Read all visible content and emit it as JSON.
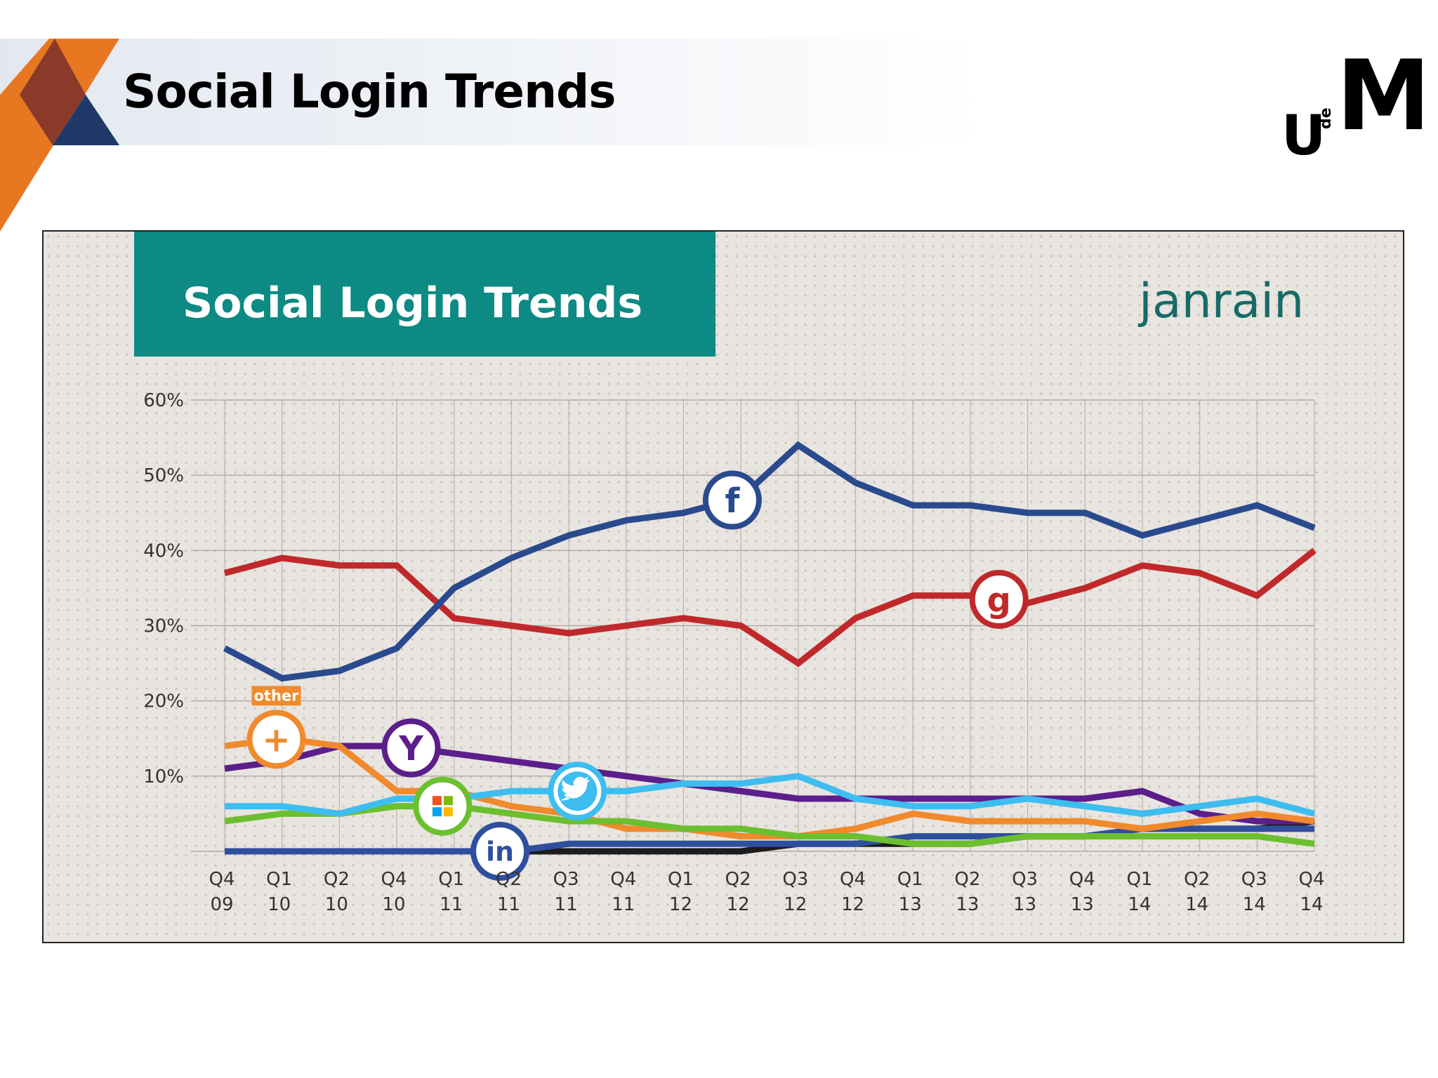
{
  "slide": {
    "title": "Social Login Trends",
    "logo": {
      "icon": "university-logo-icon",
      "letters": [
        "U",
        "de",
        "M"
      ]
    }
  },
  "colors": {
    "header_orange": "#e87722",
    "header_brown": "#8b3a2a",
    "header_navy": "#1f3a68",
    "panel_teal": "#0d8a84",
    "janrain_teal": "#176b66"
  },
  "chart_data": {
    "type": "line",
    "title": "Social Login Trends",
    "brand": "janrain",
    "x": [
      "Q4 09",
      "Q1 10",
      "Q2 10",
      "Q4 10",
      "Q1 11",
      "Q2 11",
      "Q3 11",
      "Q4 11",
      "Q1 12",
      "Q2 12",
      "Q3 12",
      "Q4 12",
      "Q1 13",
      "Q2 13",
      "Q3 13",
      "Q4 13",
      "Q1 14",
      "Q2 14",
      "Q3 14",
      "Q4 14"
    ],
    "y_ticks": [
      "60%",
      "50%",
      "40%",
      "30%",
      "20%",
      "10%"
    ],
    "ylim": [
      0,
      60
    ],
    "grid": true,
    "series": [
      {
        "color": "#2a4a8e",
        "icon": "facebook-icon",
        "icon_text": "f",
        "icon_at": 8.85,
        "values": [
          27,
          23,
          24,
          27,
          35,
          39,
          42,
          44,
          45,
          47,
          54,
          49,
          46,
          46,
          45,
          45,
          42,
          44,
          46,
          43
        ]
      },
      {
        "color": "#c0292b",
        "icon": "google-icon",
        "icon_text": "g",
        "icon_at": 13.5,
        "values": [
          37,
          39,
          38,
          38,
          31,
          30,
          29,
          30,
          31,
          30,
          25,
          31,
          34,
          34,
          33,
          35,
          38,
          37,
          34,
          40
        ]
      },
      {
        "color": "#3dbdf0",
        "icon": "twitter-icon",
        "icon_text": "",
        "icon_at": 6.15,
        "values": [
          6,
          6,
          5,
          7,
          7,
          8,
          8,
          8,
          9,
          9,
          10,
          7,
          6,
          6,
          7,
          6,
          5,
          6,
          7,
          5
        ]
      },
      {
        "color": "#6cbf2f",
        "icon": "microsoft-icon",
        "icon_text": "",
        "icon_at": 3.8,
        "values": [
          4,
          5,
          5,
          6,
          6,
          5,
          4,
          4,
          3,
          3,
          2,
          2,
          1,
          1,
          2,
          2,
          2,
          2,
          2,
          1
        ]
      },
      {
        "color": "#f08a2c",
        "icon": "plus-icon",
        "icon_text": "+",
        "icon_at": 0.9,
        "label": "other",
        "values": [
          14,
          15,
          14,
          8,
          8,
          6,
          5,
          3,
          3,
          2,
          2,
          3,
          5,
          4,
          4,
          4,
          3,
          4,
          5,
          4
        ]
      },
      {
        "color": "#5b1e8a",
        "icon": "yahoo-icon",
        "icon_text": "Y",
        "icon_at": 3.25,
        "values": [
          11,
          12,
          14,
          14,
          13,
          12,
          11,
          10,
          9,
          8,
          7,
          7,
          7,
          7,
          7,
          7,
          8,
          5,
          4,
          4
        ]
      },
      {
        "color": "#2f4f9e",
        "icon": "linkedin-icon",
        "icon_text": "in",
        "icon_at": 4.8,
        "values": [
          0,
          0,
          0,
          0,
          0,
          0,
          1,
          1,
          1,
          1,
          1,
          1,
          2,
          2,
          2,
          2,
          3,
          3,
          3,
          3
        ]
      },
      {
        "color": "#1c1c1c",
        "values": [
          0,
          0,
          0,
          0,
          0,
          0,
          0,
          0,
          0,
          0,
          1,
          1,
          1,
          1,
          2,
          2,
          3,
          3,
          3,
          4
        ]
      }
    ]
  }
}
